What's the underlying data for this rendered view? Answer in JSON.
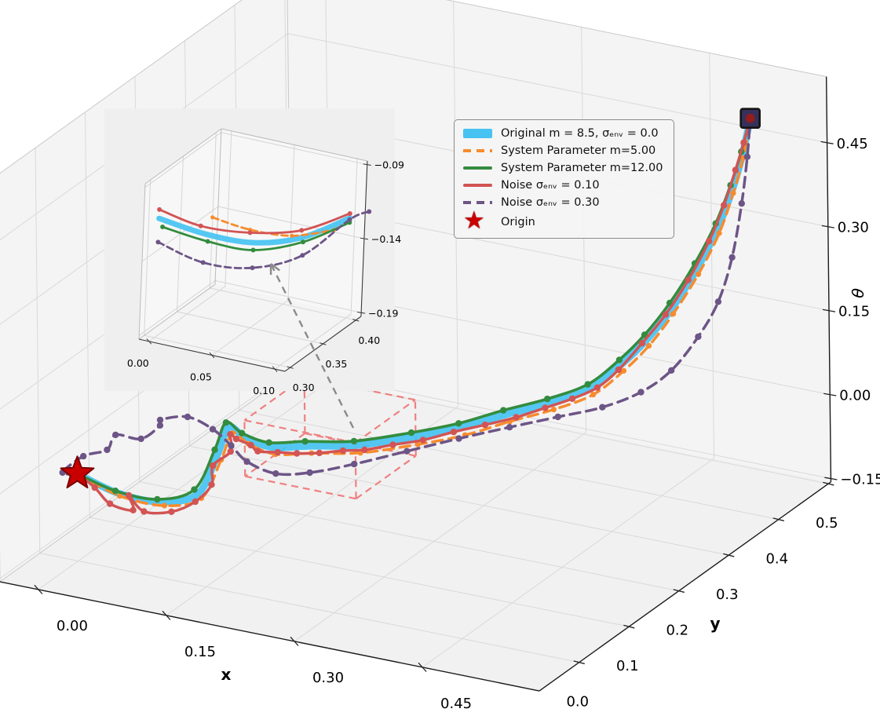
{
  "chart_data": {
    "type": "line3d",
    "title": "",
    "background": "#ffffff",
    "axes": {
      "x": {
        "label": "x",
        "tick_labels": [
          "0.00",
          "0.15",
          "0.30",
          "0.45"
        ],
        "tick_values": [
          0.0,
          0.15,
          0.3,
          0.45
        ],
        "range": [
          -0.045,
          0.587
        ]
      },
      "y": {
        "label": "y",
        "tick_labels": [
          "0.0",
          "0.1",
          "0.2",
          "0.3",
          "0.4",
          "0.5"
        ],
        "tick_values": [
          0.0,
          0.1,
          0.2,
          0.3,
          0.4,
          0.5
        ],
        "range": [
          -0.08,
          0.505
        ]
      },
      "z": {
        "label": "θ",
        "tick_labels": [
          "−0.15",
          "0.00",
          "0.15",
          "0.30",
          "0.45"
        ],
        "tick_values": [
          -0.15,
          0.0,
          0.15,
          0.3,
          0.45
        ],
        "range": [
          -0.156,
          0.568
        ]
      }
    },
    "legend": {
      "position": "upper-center",
      "entries": [
        {
          "label": "Original m = 8.5, σₑₙᵥ = 0.0",
          "swatch": "band",
          "color": "#47c2f2"
        },
        {
          "label": "System Parameter m=5.00",
          "swatch": "dashed",
          "color": "#f78b2e"
        },
        {
          "label": "System Parameter m=12.00",
          "swatch": "solid",
          "color": "#338c3e"
        },
        {
          "label": "Noise σₑₙᵥ = 0.10",
          "swatch": "solid",
          "color": "#d25454"
        },
        {
          "label": "Noise σₑₙᵥ = 0.30",
          "swatch": "dashed",
          "color": "#6d5587"
        },
        {
          "label": "Origin",
          "swatch": "star",
          "color": "#c80000"
        }
      ]
    },
    "series": [
      {
        "name": "Original m = 8.5, σₑₙᵥ = 0.0",
        "color": "#47c2f2",
        "line": "solid",
        "width": 9,
        "markers": false,
        "marker_size": 0,
        "points": [
          [
            0.0,
            0.0,
            0.0
          ],
          [
            0.04,
            0.012,
            -0.03
          ],
          [
            0.08,
            0.03,
            -0.045
          ],
          [
            0.1,
            0.07,
            -0.05
          ],
          [
            0.1,
            0.11,
            -0.005
          ],
          [
            0.09,
            0.15,
            0.015
          ],
          [
            0.085,
            0.19,
            -0.03
          ],
          [
            0.09,
            0.235,
            -0.075
          ],
          [
            0.1,
            0.29,
            -0.105
          ],
          [
            0.122,
            0.35,
            -0.135
          ],
          [
            0.16,
            0.4,
            -0.14
          ],
          [
            0.195,
            0.435,
            -0.135
          ],
          [
            0.23,
            0.465,
            -0.12
          ],
          [
            0.27,
            0.485,
            -0.1
          ],
          [
            0.31,
            0.497,
            -0.07
          ],
          [
            0.345,
            0.5,
            -0.018
          ],
          [
            0.375,
            0.5,
            0.035
          ],
          [
            0.405,
            0.5,
            0.1
          ],
          [
            0.435,
            0.5,
            0.18
          ],
          [
            0.46,
            0.5,
            0.26
          ],
          [
            0.478,
            0.5,
            0.335
          ],
          [
            0.49,
            0.5,
            0.4
          ],
          [
            0.5,
            0.5,
            0.47
          ]
        ]
      },
      {
        "name": "System Parameter m=5.00",
        "color": "#f78b2e",
        "line": "dashed",
        "width": 3.5,
        "markers": true,
        "marker_size": 3.6,
        "points": [
          [
            0.0,
            0.0,
            0.0
          ],
          [
            0.042,
            0.013,
            -0.035
          ],
          [
            0.083,
            0.032,
            -0.052
          ],
          [
            0.103,
            0.072,
            -0.058
          ],
          [
            0.103,
            0.112,
            -0.015
          ],
          [
            0.093,
            0.152,
            0.004
          ],
          [
            0.088,
            0.192,
            -0.042
          ],
          [
            0.093,
            0.237,
            -0.088
          ],
          [
            0.103,
            0.292,
            -0.118
          ],
          [
            0.125,
            0.352,
            -0.149
          ],
          [
            0.163,
            0.402,
            -0.154
          ],
          [
            0.198,
            0.437,
            -0.149
          ],
          [
            0.233,
            0.467,
            -0.133
          ],
          [
            0.273,
            0.487,
            -0.112
          ],
          [
            0.313,
            0.498,
            -0.08
          ],
          [
            0.348,
            0.5,
            -0.028
          ],
          [
            0.378,
            0.5,
            0.026
          ],
          [
            0.407,
            0.5,
            0.092
          ],
          [
            0.437,
            0.5,
            0.172
          ],
          [
            0.462,
            0.5,
            0.253
          ],
          [
            0.479,
            0.5,
            0.33
          ],
          [
            0.491,
            0.5,
            0.396
          ],
          [
            0.5,
            0.5,
            0.47
          ]
        ]
      },
      {
        "name": "System Parameter m=12.00",
        "color": "#338c3e",
        "line": "solid",
        "width": 3.6,
        "markers": true,
        "marker_size": 4.2,
        "points": [
          [
            0.0,
            0.0,
            0.0
          ],
          [
            0.038,
            0.011,
            -0.026
          ],
          [
            0.077,
            0.028,
            -0.04
          ],
          [
            0.097,
            0.068,
            -0.042
          ],
          [
            0.098,
            0.108,
            0.004
          ],
          [
            0.088,
            0.148,
            0.024
          ],
          [
            0.083,
            0.188,
            -0.022
          ],
          [
            0.088,
            0.233,
            -0.066
          ],
          [
            0.098,
            0.288,
            -0.096
          ],
          [
            0.12,
            0.348,
            -0.127
          ],
          [
            0.158,
            0.398,
            -0.132
          ],
          [
            0.193,
            0.433,
            -0.127
          ],
          [
            0.228,
            0.463,
            -0.112
          ],
          [
            0.268,
            0.483,
            -0.092
          ],
          [
            0.308,
            0.496,
            -0.062
          ],
          [
            0.343,
            0.5,
            -0.01
          ],
          [
            0.373,
            0.5,
            0.044
          ],
          [
            0.403,
            0.5,
            0.11
          ],
          [
            0.433,
            0.5,
            0.19
          ],
          [
            0.458,
            0.5,
            0.269
          ],
          [
            0.476,
            0.5,
            0.343
          ],
          [
            0.489,
            0.5,
            0.407
          ],
          [
            0.5,
            0.5,
            0.47
          ]
        ]
      },
      {
        "name": "Noise σₑₙᵥ = 0.10",
        "color": "#d25454",
        "line": "solid",
        "width": 3.4,
        "markers": true,
        "marker_size": 4.2,
        "points": [
          [
            0.0,
            0.0,
            0.0
          ],
          [
            0.018,
            0.004,
            -0.022
          ],
          [
            0.038,
            0.0,
            -0.042
          ],
          [
            0.058,
            0.012,
            -0.055
          ],
          [
            0.046,
            0.024,
            -0.04
          ],
          [
            0.066,
            0.02,
            -0.06
          ],
          [
            0.09,
            0.034,
            -0.062
          ],
          [
            0.104,
            0.058,
            -0.055
          ],
          [
            0.108,
            0.084,
            -0.04
          ],
          [
            0.098,
            0.104,
            -0.022
          ],
          [
            0.106,
            0.126,
            -0.008
          ],
          [
            0.094,
            0.146,
            0.006
          ],
          [
            0.088,
            0.168,
            -0.018
          ],
          [
            0.092,
            0.19,
            -0.042
          ],
          [
            0.086,
            0.214,
            -0.07
          ],
          [
            0.094,
            0.24,
            -0.086
          ],
          [
            0.1,
            0.268,
            -0.104
          ],
          [
            0.11,
            0.296,
            -0.118
          ],
          [
            0.12,
            0.326,
            -0.13
          ],
          [
            0.13,
            0.352,
            -0.142
          ],
          [
            0.148,
            0.378,
            -0.144
          ],
          [
            0.168,
            0.404,
            -0.146
          ],
          [
            0.19,
            0.428,
            -0.14
          ],
          [
            0.214,
            0.45,
            -0.134
          ],
          [
            0.24,
            0.468,
            -0.124
          ],
          [
            0.266,
            0.482,
            -0.108
          ],
          [
            0.292,
            0.492,
            -0.09
          ],
          [
            0.318,
            0.498,
            -0.066
          ],
          [
            0.342,
            0.5,
            -0.028
          ],
          [
            0.37,
            0.5,
            0.028
          ],
          [
            0.398,
            0.5,
            0.088
          ],
          [
            0.425,
            0.5,
            0.158
          ],
          [
            0.45,
            0.5,
            0.235
          ],
          [
            0.468,
            0.5,
            0.305
          ],
          [
            0.482,
            0.5,
            0.372
          ],
          [
            0.492,
            0.5,
            0.424
          ],
          [
            0.5,
            0.5,
            0.47
          ]
        ]
      },
      {
        "name": "Noise σₑₙᵥ = 0.30",
        "color": "#6d5587",
        "line": "dashed",
        "width": 3.5,
        "markers": true,
        "marker_size": 4.2,
        "points": [
          [
            0.0,
            0.0,
            0.0
          ],
          [
            -0.022,
            0.008,
            -0.01
          ],
          [
            -0.008,
            0.026,
            0.012
          ],
          [
            0.014,
            0.036,
            0.024
          ],
          [
            0.01,
            0.06,
            0.034
          ],
          [
            0.034,
            0.07,
            0.028
          ],
          [
            0.04,
            0.098,
            0.036
          ],
          [
            0.026,
            0.122,
            0.026
          ],
          [
            0.05,
            0.136,
            0.03
          ],
          [
            0.07,
            0.152,
            0.004
          ],
          [
            0.076,
            0.178,
            -0.04
          ],
          [
            0.072,
            0.216,
            -0.094
          ],
          [
            0.082,
            0.256,
            -0.138
          ],
          [
            0.096,
            0.3,
            -0.16
          ],
          [
            0.12,
            0.348,
            -0.168
          ],
          [
            0.156,
            0.392,
            -0.162
          ],
          [
            0.196,
            0.428,
            -0.15
          ],
          [
            0.238,
            0.458,
            -0.136
          ],
          [
            0.282,
            0.48,
            -0.118
          ],
          [
            0.326,
            0.494,
            -0.096
          ],
          [
            0.368,
            0.5,
            -0.06
          ],
          [
            0.404,
            0.5,
            -0.01
          ],
          [
            0.436,
            0.5,
            0.06
          ],
          [
            0.46,
            0.5,
            0.13
          ],
          [
            0.478,
            0.498,
            0.216
          ],
          [
            0.49,
            0.498,
            0.316
          ],
          [
            0.496,
            0.5,
            0.4
          ],
          [
            0.5,
            0.5,
            0.47
          ]
        ]
      }
    ],
    "origin_marker": {
      "label": "Origin",
      "position": [
        0.0,
        0.0,
        0.0
      ],
      "color": "#c80000",
      "edge": "#7a0000"
    },
    "endpoint_marker": {
      "position": [
        0.5,
        0.5,
        0.47
      ],
      "fill": "#36305a",
      "edge": "#141414",
      "dot": "#941c1c"
    },
    "zoom_region": {
      "x": [
        0.02,
        0.15
      ],
      "y": [
        0.3,
        0.42
      ],
      "z": [
        -0.19,
        -0.09
      ],
      "color": "#f08080"
    },
    "inset": {
      "x_tick_labels": [
        "0.00",
        "0.05",
        "0.10"
      ],
      "x_tick_values": [
        0.0,
        0.05,
        0.1
      ],
      "y_tick_labels": [
        "0.30",
        "0.35",
        "0.40"
      ],
      "y_tick_values": [
        0.3,
        0.35,
        0.4
      ],
      "z_tick_labels": [
        "−0.19",
        "−0.14",
        "−0.09"
      ],
      "z_tick_values": [
        -0.19,
        -0.14,
        -0.09
      ],
      "series": [
        {
          "name": "Original m = 8.5, σₑₙᵥ = 0.0",
          "color": "#47c2f2",
          "line": "solid",
          "width": 7,
          "markers": false,
          "marker_size": 0,
          "points": [
            [
              0.0,
              0.3,
              -0.112
            ],
            [
              0.025,
              0.325,
              -0.126
            ],
            [
              0.05,
              0.35,
              -0.135
            ],
            [
              0.075,
              0.375,
              -0.135
            ],
            [
              0.1,
              0.4,
              -0.125
            ]
          ]
        },
        {
          "name": "System Parameter m=5.00",
          "color": "#f78b2e",
          "line": "dashed",
          "width": 2.8,
          "markers": true,
          "marker_size": 2.6,
          "points": [
            [
              0.028,
              0.328,
              -0.115
            ],
            [
              0.048,
              0.348,
              -0.126
            ],
            [
              0.07,
              0.37,
              -0.133
            ],
            [
              0.092,
              0.392,
              -0.132
            ]
          ]
        },
        {
          "name": "System Parameter m=12.00",
          "color": "#338c3e",
          "line": "solid",
          "width": 2.8,
          "markers": true,
          "marker_size": 3,
          "points": [
            [
              0.002,
              0.302,
              -0.118
            ],
            [
              0.026,
              0.326,
              -0.131
            ],
            [
              0.05,
              0.35,
              -0.14
            ],
            [
              0.076,
              0.376,
              -0.138
            ],
            [
              0.1,
              0.4,
              -0.128
            ]
          ]
        },
        {
          "name": "Noise σₑₙᵥ = 0.10",
          "color": "#d25454",
          "line": "solid",
          "width": 2.8,
          "markers": true,
          "marker_size": 3,
          "points": [
            [
              0.0,
              0.3,
              -0.106
            ],
            [
              0.022,
              0.322,
              -0.12
            ],
            [
              0.048,
              0.348,
              -0.128
            ],
            [
              0.075,
              0.375,
              -0.13
            ],
            [
              0.1,
              0.4,
              -0.122
            ]
          ]
        },
        {
          "name": "Noise σₑₙᵥ = 0.30",
          "color": "#6d5587",
          "line": "dashed",
          "width": 2.8,
          "markers": true,
          "marker_size": 3,
          "points": [
            [
              0.0,
              0.3,
              -0.128
            ],
            [
              0.024,
              0.324,
              -0.145
            ],
            [
              0.05,
              0.35,
              -0.152
            ],
            [
              0.076,
              0.376,
              -0.147
            ],
            [
              0.1,
              0.4,
              -0.126
            ],
            [
              0.11,
              0.41,
              -0.122
            ]
          ]
        }
      ]
    }
  }
}
